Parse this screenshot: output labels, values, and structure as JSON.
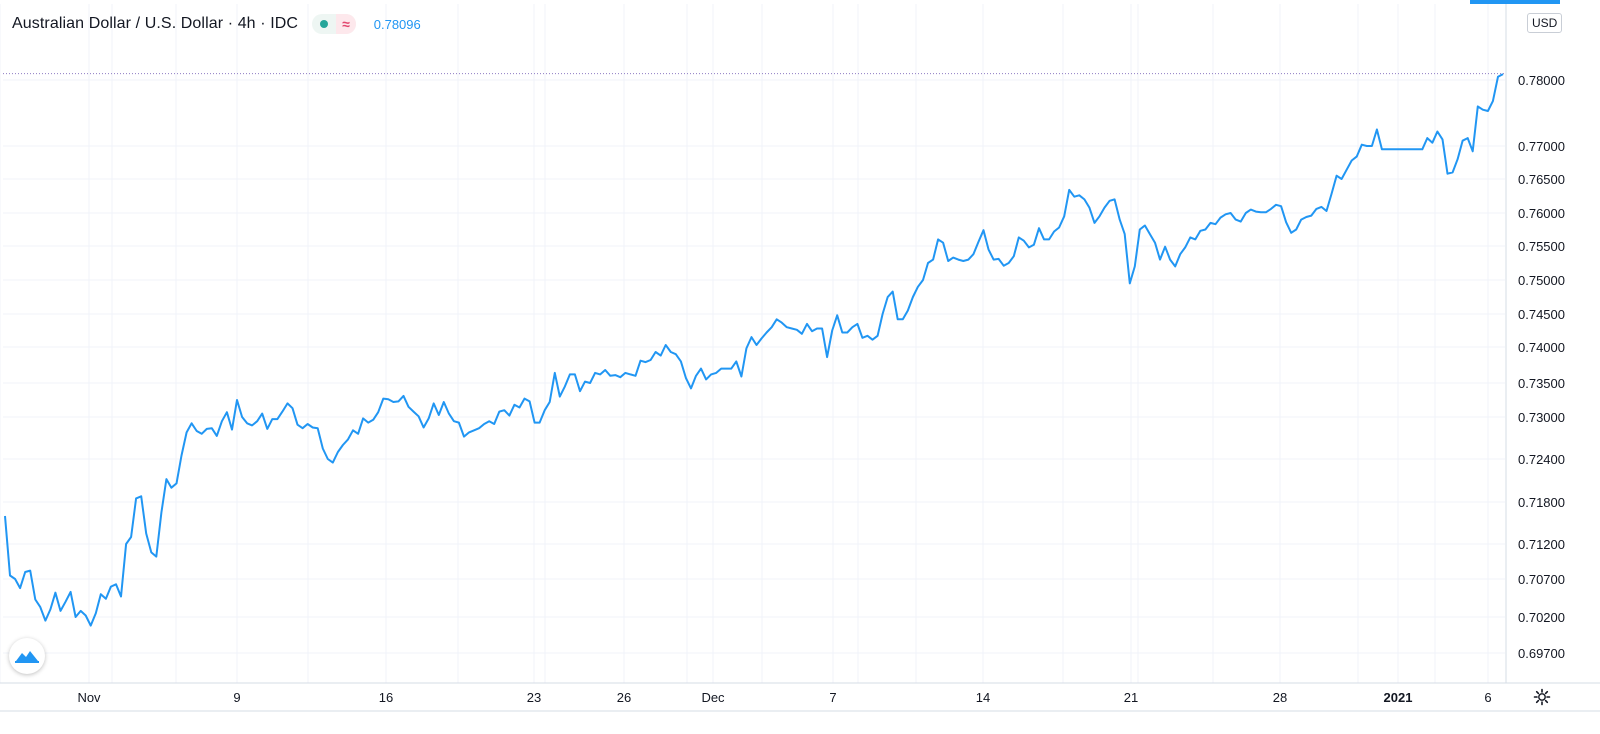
{
  "legend": {
    "title": "Australian Dollar / U.S. Dollar · 4h · IDC",
    "status_symbol": "≈",
    "last_value": "0.78096"
  },
  "price_axis": {
    "currency": "USD"
  },
  "icons": {
    "status_dot": "market-open-dot-icon",
    "status_wave": "delayed-data-icon",
    "logo": "tradingview-logo-icon",
    "settings": "gear-icon"
  },
  "colors": {
    "line": "#2196f3",
    "status_green": "#26a69a",
    "status_red": "#e2476f"
  },
  "chart_data": {
    "type": "line",
    "title": "Australian Dollar / U.S. Dollar · 4h · IDC",
    "series": [
      {
        "name": "Australian Dollar / U.S. Dollar",
        "x_labels_note_free": true,
        "values": [
          0.716,
          0.7075,
          0.707,
          0.7058,
          0.708,
          0.7082,
          0.7043,
          0.7033,
          0.7015,
          0.703,
          0.7052,
          0.7028,
          0.704,
          0.7053,
          0.702,
          0.7028,
          0.7022,
          0.7008,
          0.7025,
          0.705,
          0.7044,
          0.706,
          0.7063,
          0.7047,
          0.712,
          0.713,
          0.7185,
          0.7188,
          0.7135,
          0.7108,
          0.7102,
          0.7165,
          0.7212,
          0.72,
          0.7206,
          0.7245,
          0.7278,
          0.7291,
          0.728,
          0.7276,
          0.7283,
          0.7284,
          0.7273,
          0.7294,
          0.7307,
          0.7282,
          0.7325,
          0.73,
          0.7291,
          0.7288,
          0.7294,
          0.7305,
          0.7283,
          0.7297,
          0.7297,
          0.7308,
          0.732,
          0.7313,
          0.7289,
          0.7284,
          0.729,
          0.7285,
          0.7284,
          0.7255,
          0.724,
          0.7235,
          0.725,
          0.726,
          0.7268,
          0.7281,
          0.7276,
          0.7298,
          0.7292,
          0.7296,
          0.7307,
          0.7327,
          0.7326,
          0.7322,
          0.7323,
          0.7331,
          0.7315,
          0.7308,
          0.7301,
          0.7285,
          0.7298,
          0.732,
          0.7303,
          0.7322,
          0.7305,
          0.7294,
          0.7292,
          0.7272,
          0.7278,
          0.7281,
          0.7284,
          0.729,
          0.7294,
          0.729,
          0.7308,
          0.731,
          0.7302,
          0.7318,
          0.7314,
          0.7327,
          0.7323,
          0.7292,
          0.7292,
          0.731,
          0.7322,
          0.7364,
          0.733,
          0.7345,
          0.7362,
          0.7362,
          0.7338,
          0.7352,
          0.735,
          0.7364,
          0.7362,
          0.7368,
          0.736,
          0.7361,
          0.7358,
          0.7364,
          0.7362,
          0.736,
          0.7381,
          0.7379,
          0.7382,
          0.7393,
          0.7388,
          0.7403,
          0.7393,
          0.739,
          0.738,
          0.7357,
          0.7342,
          0.736,
          0.737,
          0.7355,
          0.7362,
          0.7364,
          0.737,
          0.737,
          0.737,
          0.738,
          0.7359,
          0.7398,
          0.7415,
          0.7403,
          0.7413,
          0.7422,
          0.743,
          0.7442,
          0.7437,
          0.743,
          0.7428,
          0.7426,
          0.742,
          0.7435,
          0.7424,
          0.7428,
          0.7428,
          0.7386,
          0.7425,
          0.7448,
          0.7422,
          0.7422,
          0.743,
          0.7435,
          0.7414,
          0.7417,
          0.7411,
          0.7417,
          0.745,
          0.7475,
          0.7483,
          0.7442,
          0.7442,
          0.7455,
          0.7475,
          0.749,
          0.75,
          0.7525,
          0.753,
          0.756,
          0.7555,
          0.7528,
          0.7533,
          0.753,
          0.7528,
          0.753,
          0.7538,
          0.7556,
          0.7574,
          0.7545,
          0.753,
          0.7531,
          0.7521,
          0.7525,
          0.7535,
          0.7563,
          0.7558,
          0.7548,
          0.7552,
          0.7577,
          0.756,
          0.756,
          0.7572,
          0.7578,
          0.7595,
          0.7634,
          0.7624,
          0.7626,
          0.762,
          0.7608,
          0.7585,
          0.7595,
          0.7608,
          0.7618,
          0.762,
          0.759,
          0.7568,
          0.7495,
          0.752,
          0.7575,
          0.7581,
          0.7568,
          0.7555,
          0.753,
          0.7549,
          0.753,
          0.752,
          0.7538,
          0.7548,
          0.7563,
          0.756,
          0.7573,
          0.7575,
          0.7585,
          0.7583,
          0.7593,
          0.7598,
          0.76,
          0.759,
          0.7587,
          0.76,
          0.7605,
          0.7602,
          0.7601,
          0.7601,
          0.7606,
          0.7612,
          0.761,
          0.7586,
          0.757,
          0.7575,
          0.759,
          0.7594,
          0.7596,
          0.7606,
          0.7609,
          0.7603,
          0.7628,
          0.7655,
          0.765,
          0.7664,
          0.7678,
          0.7684,
          0.7702,
          0.77,
          0.77,
          0.7725,
          0.7695,
          0.7695,
          0.7695,
          0.7695,
          0.7695,
          0.7695,
          0.7695,
          0.7695,
          0.7695,
          0.7712,
          0.7705,
          0.7722,
          0.771,
          0.7658,
          0.766,
          0.768,
          0.7708,
          0.7712,
          0.7692,
          0.776,
          0.7755,
          0.7753,
          0.7768,
          0.7805,
          0.7809
        ]
      }
    ],
    "x_tick_labels": [
      "Nov",
      "9",
      "16",
      "23",
      "26",
      "Dec",
      "7",
      "14",
      "21",
      "28",
      "2021",
      "6"
    ],
    "y_tick_labels": [
      "0.78000",
      "0.77000",
      "0.76500",
      "0.76000",
      "0.75500",
      "0.75000",
      "0.74500",
      "0.74000",
      "0.73500",
      "0.73000",
      "0.72400",
      "0.71800",
      "0.71200",
      "0.70700",
      "0.70200",
      "0.69700"
    ],
    "y_tick_values": [
      0.78,
      0.77,
      0.765,
      0.76,
      0.755,
      0.75,
      0.745,
      0.74,
      0.735,
      0.73,
      0.724,
      0.718,
      0.712,
      0.707,
      0.702,
      0.697
    ],
    "last_price": 0.78096,
    "grid": true,
    "legend_position": "top-left"
  }
}
